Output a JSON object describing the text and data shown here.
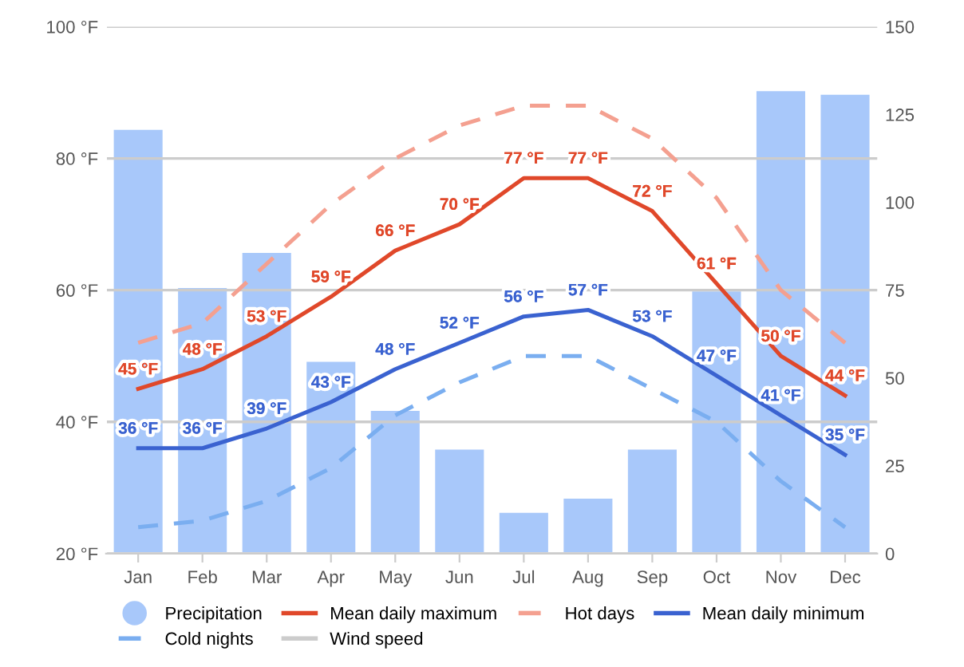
{
  "chart_data": {
    "type": "bar",
    "categories": [
      "Jan",
      "Feb",
      "Mar",
      "Apr",
      "May",
      "Jun",
      "Jul",
      "Aug",
      "Sep",
      "Oct",
      "Nov",
      "Dec"
    ],
    "series": [
      {
        "name": "Precipitation",
        "axis": "y2",
        "color": "#a8c8fa",
        "values": [
          121,
          76,
          86,
          55,
          41,
          30,
          12,
          16,
          30,
          75,
          132,
          131
        ]
      },
      {
        "name": "Mean daily maximum",
        "type": "line",
        "color": "#e0482a",
        "line_style": "solid",
        "values": [
          45,
          48,
          53,
          59,
          66,
          70,
          77,
          77,
          72,
          61,
          50,
          44
        ],
        "value_labels": [
          "45 °F",
          "48 °F",
          "53 °F",
          "59 °F",
          "66 °F",
          "70 °F",
          "77 °F",
          "77 °F",
          "72 °F",
          "61 °F",
          "50 °F",
          "44 °F"
        ]
      },
      {
        "name": "Hot days",
        "type": "line",
        "color": "#f4a090",
        "line_style": "dashed",
        "values": [
          52,
          55,
          64,
          73,
          80,
          85,
          88,
          88,
          83,
          74,
          60,
          52
        ]
      },
      {
        "name": "Mean daily minimum",
        "type": "line",
        "color": "#3a62d0",
        "line_style": "solid",
        "values": [
          36,
          36,
          39,
          43,
          48,
          52,
          56,
          57,
          53,
          47,
          41,
          35
        ],
        "value_labels": [
          "36 °F",
          "36 °F",
          "39 °F",
          "43 °F",
          "48 °F",
          "52 °F",
          "56 °F",
          "57 °F",
          "53 °F",
          "47 °F",
          "41 °F",
          "35 °F"
        ]
      },
      {
        "name": "Cold nights",
        "type": "line",
        "color": "#7aaef0",
        "line_style": "dashed",
        "values": [
          24,
          25,
          28,
          33,
          41,
          46,
          50,
          50,
          45,
          40,
          31,
          24
        ]
      },
      {
        "name": "Wind speed",
        "type": "line",
        "color": "#cccccc",
        "line_style": "solid",
        "values": [
          null,
          null,
          null,
          null,
          null,
          null,
          null,
          null,
          null,
          null,
          null,
          null
        ]
      }
    ],
    "ylim": [
      20,
      100
    ],
    "yticks": [
      {
        "value": 20,
        "label": "20 °F"
      },
      {
        "value": 40,
        "label": "40 °F"
      },
      {
        "value": 60,
        "label": "60 °F"
      },
      {
        "value": 80,
        "label": "80 °F"
      },
      {
        "value": 100,
        "label": "100 °F"
      }
    ],
    "y2lim": [
      0,
      150
    ],
    "y2ticks": [
      0,
      25,
      50,
      75,
      100,
      125,
      150
    ],
    "grid": "y",
    "legend": "bottom",
    "marker": "none"
  }
}
